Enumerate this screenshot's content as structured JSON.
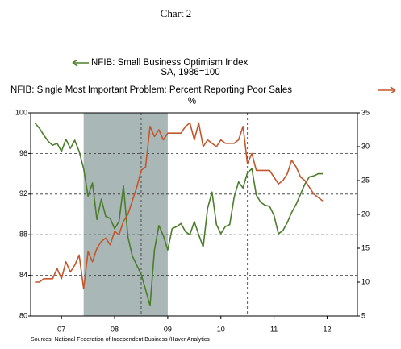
{
  "chart_data": {
    "type": "line",
    "title": "Chart 2",
    "source": "Sources:  National Federation of Independent Business /Haver Analytics",
    "x": [
      2007,
      2007.083,
      2007.167,
      2007.25,
      2007.333,
      2007.417,
      2007.5,
      2007.583,
      2007.667,
      2007.75,
      2007.833,
      2007.917,
      2008,
      2008.083,
      2008.167,
      2008.25,
      2008.333,
      2008.417,
      2008.5,
      2008.583,
      2008.667,
      2008.75,
      2008.833,
      2008.917,
      2009,
      2009.083,
      2009.167,
      2009.25,
      2009.333,
      2009.417,
      2009.5,
      2009.583,
      2009.667,
      2009.75,
      2009.833,
      2009.917,
      2010,
      2010.083,
      2010.167,
      2010.25,
      2010.333,
      2010.417,
      2010.5,
      2010.583,
      2010.667,
      2010.75,
      2010.833,
      2010.917,
      2011,
      2011.083,
      2011.167,
      2011.25,
      2011.333,
      2011.417,
      2011.5,
      2011.583,
      2011.667,
      2011.75,
      2011.833,
      2011.917,
      2012,
      2012.083,
      2012.167,
      2012.25,
      2012.333,
      2012.417
    ],
    "series": [
      {
        "name": "NFIB: Small Business Optimism Index",
        "units": "SA, 1986=100",
        "color": "#4b7d2b",
        "axis": "y",
        "values": [
          99,
          98.5,
          97.8,
          97.2,
          96.8,
          97,
          96.2,
          97.4,
          96.5,
          97.3,
          96.2,
          94.5,
          91.8,
          93.1,
          89.5,
          91.5,
          89.8,
          89.6,
          88.6,
          89.3,
          92.8,
          87.8,
          85.9,
          85,
          84.1,
          82.6,
          81,
          86.5,
          88.9,
          87.9,
          86.5,
          88.6,
          88.8,
          89.1,
          88.3,
          88,
          89.3,
          88,
          86.8,
          90.6,
          92.2,
          89,
          88.1,
          88.8,
          89,
          91.7,
          93.2,
          92.6,
          94.1,
          94.5,
          91.9,
          91.2,
          90.9,
          90.8,
          89.9,
          88.1,
          88.4,
          89.2,
          90.2,
          91,
          92,
          93,
          93.7,
          93.8,
          94,
          94
        ]
      },
      {
        "name": "NFIB: Single Most Important Problem: Percent Reporting Poor Sales",
        "units": "%",
        "color": "#c4562b",
        "axis": "y2",
        "values": [
          10,
          10,
          10.5,
          10.5,
          10.5,
          12,
          10.5,
          13,
          11.5,
          12.5,
          14,
          9,
          14.5,
          13,
          15,
          16,
          16.5,
          15.5,
          17.5,
          17,
          19,
          20,
          22,
          24,
          26.5,
          27,
          33,
          31.5,
          32.5,
          31,
          32,
          32,
          32,
          32,
          33,
          33.5,
          31,
          33.5,
          30,
          31,
          30.5,
          30,
          31,
          30.5,
          30.5,
          30.5,
          31,
          33,
          27.5,
          29,
          26.5,
          26.5,
          26.5,
          26.5,
          25.5,
          24.5,
          25,
          26,
          28,
          27,
          25.5,
          25,
          24,
          23,
          22.5,
          22
        ]
      }
    ],
    "xlim": [
      2006.92,
      2013.07
    ],
    "xticks": [
      {
        "value": 2007.5,
        "label": "07"
      },
      {
        "value": 2008.5,
        "label": "08"
      },
      {
        "value": 2009.5,
        "label": "09"
      },
      {
        "value": 2010.5,
        "label": "10"
      },
      {
        "value": 2011.5,
        "label": "11"
      },
      {
        "value": 2012.5,
        "label": "12"
      }
    ],
    "x_grid_lines": [
      2009,
      2011
    ],
    "ylim": [
      80,
      100
    ],
    "yticks": [
      80,
      84,
      88,
      92,
      96,
      100
    ],
    "y2lim": [
      5,
      35
    ],
    "y2ticks": [
      5,
      10,
      15,
      20,
      25,
      30,
      35
    ],
    "grid": true,
    "shaded_ranges": [
      [
        2007.917,
        2009.5
      ]
    ],
    "shade_color": "#aab7b7"
  }
}
